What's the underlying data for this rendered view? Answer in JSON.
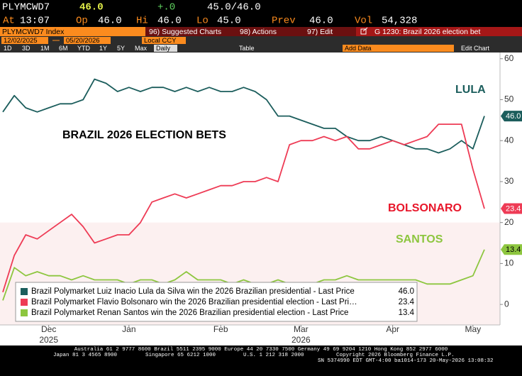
{
  "header": {
    "ticker": "PLYMCWD7",
    "last": "46.0",
    "change": "+.0",
    "bid_ask": "45.0/46.0",
    "stats": [
      {
        "label": "At",
        "value": "13:07"
      },
      {
        "label": "Op",
        "value": "46.0"
      },
      {
        "label": "Hi",
        "value": "46.0"
      },
      {
        "label": "Lo",
        "value": "45.0"
      },
      {
        "label": "Prev",
        "value": "46.0"
      },
      {
        "label": "Vol",
        "value": "54,328"
      }
    ]
  },
  "toolbar": {
    "security": "PLYMCWD7 Index",
    "menus": [
      "96) Suggested Charts",
      "98) Actions",
      "97) Edit"
    ],
    "chart_name": "G 1230: Brazil 2026 election bet",
    "start_date": "12/02/2025",
    "end_date": "05/20/2026",
    "currency": "Local CCY",
    "periods": [
      "1D",
      "3D",
      "1M",
      "6M",
      "YTD",
      "1Y",
      "5Y",
      "Max"
    ],
    "frequency": "Daily",
    "table": "Table",
    "add_data": "Add Data",
    "edit_chart": "Edit Chart"
  },
  "chart_data": {
    "type": "line",
    "title": "BRAZIL 2026 ELECTION BETS",
    "categories": [
      null,
      null,
      null,
      null,
      "Dec",
      null,
      null,
      null,
      null,
      null,
      null,
      "Jan",
      null,
      null,
      null,
      null,
      null,
      null,
      null,
      "Feb",
      null,
      null,
      null,
      null,
      null,
      null,
      "Mar",
      null,
      null,
      null,
      null,
      null,
      null,
      null,
      "Apr",
      null,
      null,
      null,
      null,
      null,
      null,
      "May",
      null
    ],
    "category_years": [
      null,
      null,
      null,
      null,
      "2025",
      null,
      null,
      null,
      null,
      null,
      null,
      null,
      null,
      null,
      null,
      null,
      null,
      null,
      null,
      null,
      null,
      null,
      null,
      null,
      null,
      null,
      "2026",
      null,
      null,
      null,
      null,
      null,
      null,
      null,
      null,
      null,
      null,
      null,
      null,
      null,
      null,
      null,
      null
    ],
    "ylim": [
      -5,
      61
    ],
    "yticks": [
      0,
      10,
      20,
      30,
      40,
      50,
      60
    ],
    "series": [
      {
        "name": "Brazil Polymarket Luiz Inacio Lula da Silva win the 2026 Brazilian presidential - Last Price",
        "label": "LULA",
        "color": "#1b5d5c",
        "label_color": "#1b5d5c",
        "values": [
          47,
          51,
          48,
          47,
          48,
          49,
          49,
          50,
          55,
          54,
          52,
          53,
          52,
          53,
          53,
          52,
          53,
          52,
          53,
          52,
          52,
          53,
          52,
          50,
          46,
          46,
          45,
          44,
          43,
          43,
          41,
          40,
          40,
          41,
          40,
          39,
          38,
          38,
          37,
          38,
          40,
          38,
          46
        ],
        "value_labels": [
          null,
          null,
          null,
          null,
          null,
          null,
          null,
          null,
          null,
          null,
          null,
          null,
          null,
          null,
          null,
          null,
          null,
          null,
          null,
          null,
          null,
          null,
          null,
          null,
          null,
          null,
          null,
          null,
          null,
          null,
          null,
          null,
          null,
          null,
          null,
          null,
          null,
          null,
          null,
          null,
          null,
          null,
          "46.0"
        ]
      },
      {
        "name": "Brazil Polymarket Flavio Bolsonaro win the 2026 Brazilian presidential election - Last Pri…",
        "label": "BOLSONARO",
        "color": "#ee3b55",
        "label_color": "#e8162a",
        "values": [
          3,
          12,
          17,
          16,
          18,
          20,
          22,
          19,
          15,
          16,
          17,
          17,
          20,
          25,
          26,
          27,
          26,
          27,
          28,
          29,
          29,
          30,
          30,
          31,
          30,
          39,
          40,
          40,
          41,
          40,
          41,
          38,
          38,
          39,
          40,
          39,
          40,
          41,
          44,
          44,
          44,
          33,
          23.4
        ],
        "value_labels": [
          null,
          null,
          null,
          null,
          null,
          null,
          null,
          null,
          null,
          null,
          null,
          null,
          null,
          null,
          null,
          null,
          null,
          null,
          null,
          null,
          null,
          null,
          null,
          null,
          null,
          null,
          null,
          null,
          null,
          null,
          null,
          null,
          null,
          null,
          null,
          null,
          null,
          null,
          null,
          null,
          null,
          null,
          "23.4"
        ]
      },
      {
        "name": "Brazil Polymarket Renan Santos win the 2026 Brazilian presidential election - Last Price",
        "label": "SANTOS",
        "color": "#8dc63f",
        "label_color": "#8dc63f",
        "values": [
          1,
          9,
          7,
          8,
          7,
          7,
          6,
          7,
          6,
          6,
          6,
          5,
          6,
          6,
          5,
          6,
          8,
          6,
          6,
          6,
          5,
          6,
          5,
          5,
          6,
          5,
          5,
          5,
          6,
          6,
          7,
          6,
          6,
          6,
          6,
          6,
          6,
          5,
          5,
          5,
          6,
          7,
          13.4
        ],
        "value_labels": [
          null,
          null,
          null,
          null,
          null,
          null,
          null,
          null,
          null,
          null,
          null,
          null,
          null,
          null,
          null,
          null,
          null,
          null,
          null,
          null,
          null,
          null,
          null,
          null,
          null,
          null,
          null,
          null,
          null,
          null,
          null,
          null,
          null,
          null,
          null,
          null,
          null,
          null,
          null,
          null,
          null,
          null,
          "13.4"
        ]
      }
    ]
  },
  "footer": [
    "Australia 61 2 9777 8600 Brazil 5511 2395 9000 Europe 44 20 7330 7500 Germany 49 69 9204 1210 Hong Kong 852 2977 6000",
    "Japan 81 3 4565 8900",
    "Singapore 65 6212 1000",
    "U.S. 1 212 318 2000",
    "Copyright 2026 Bloomberg Finance L.P.",
    "SN 5374990 EDT  GMT-4:00 ba1014-173 20-May-2026 13:08:32"
  ]
}
